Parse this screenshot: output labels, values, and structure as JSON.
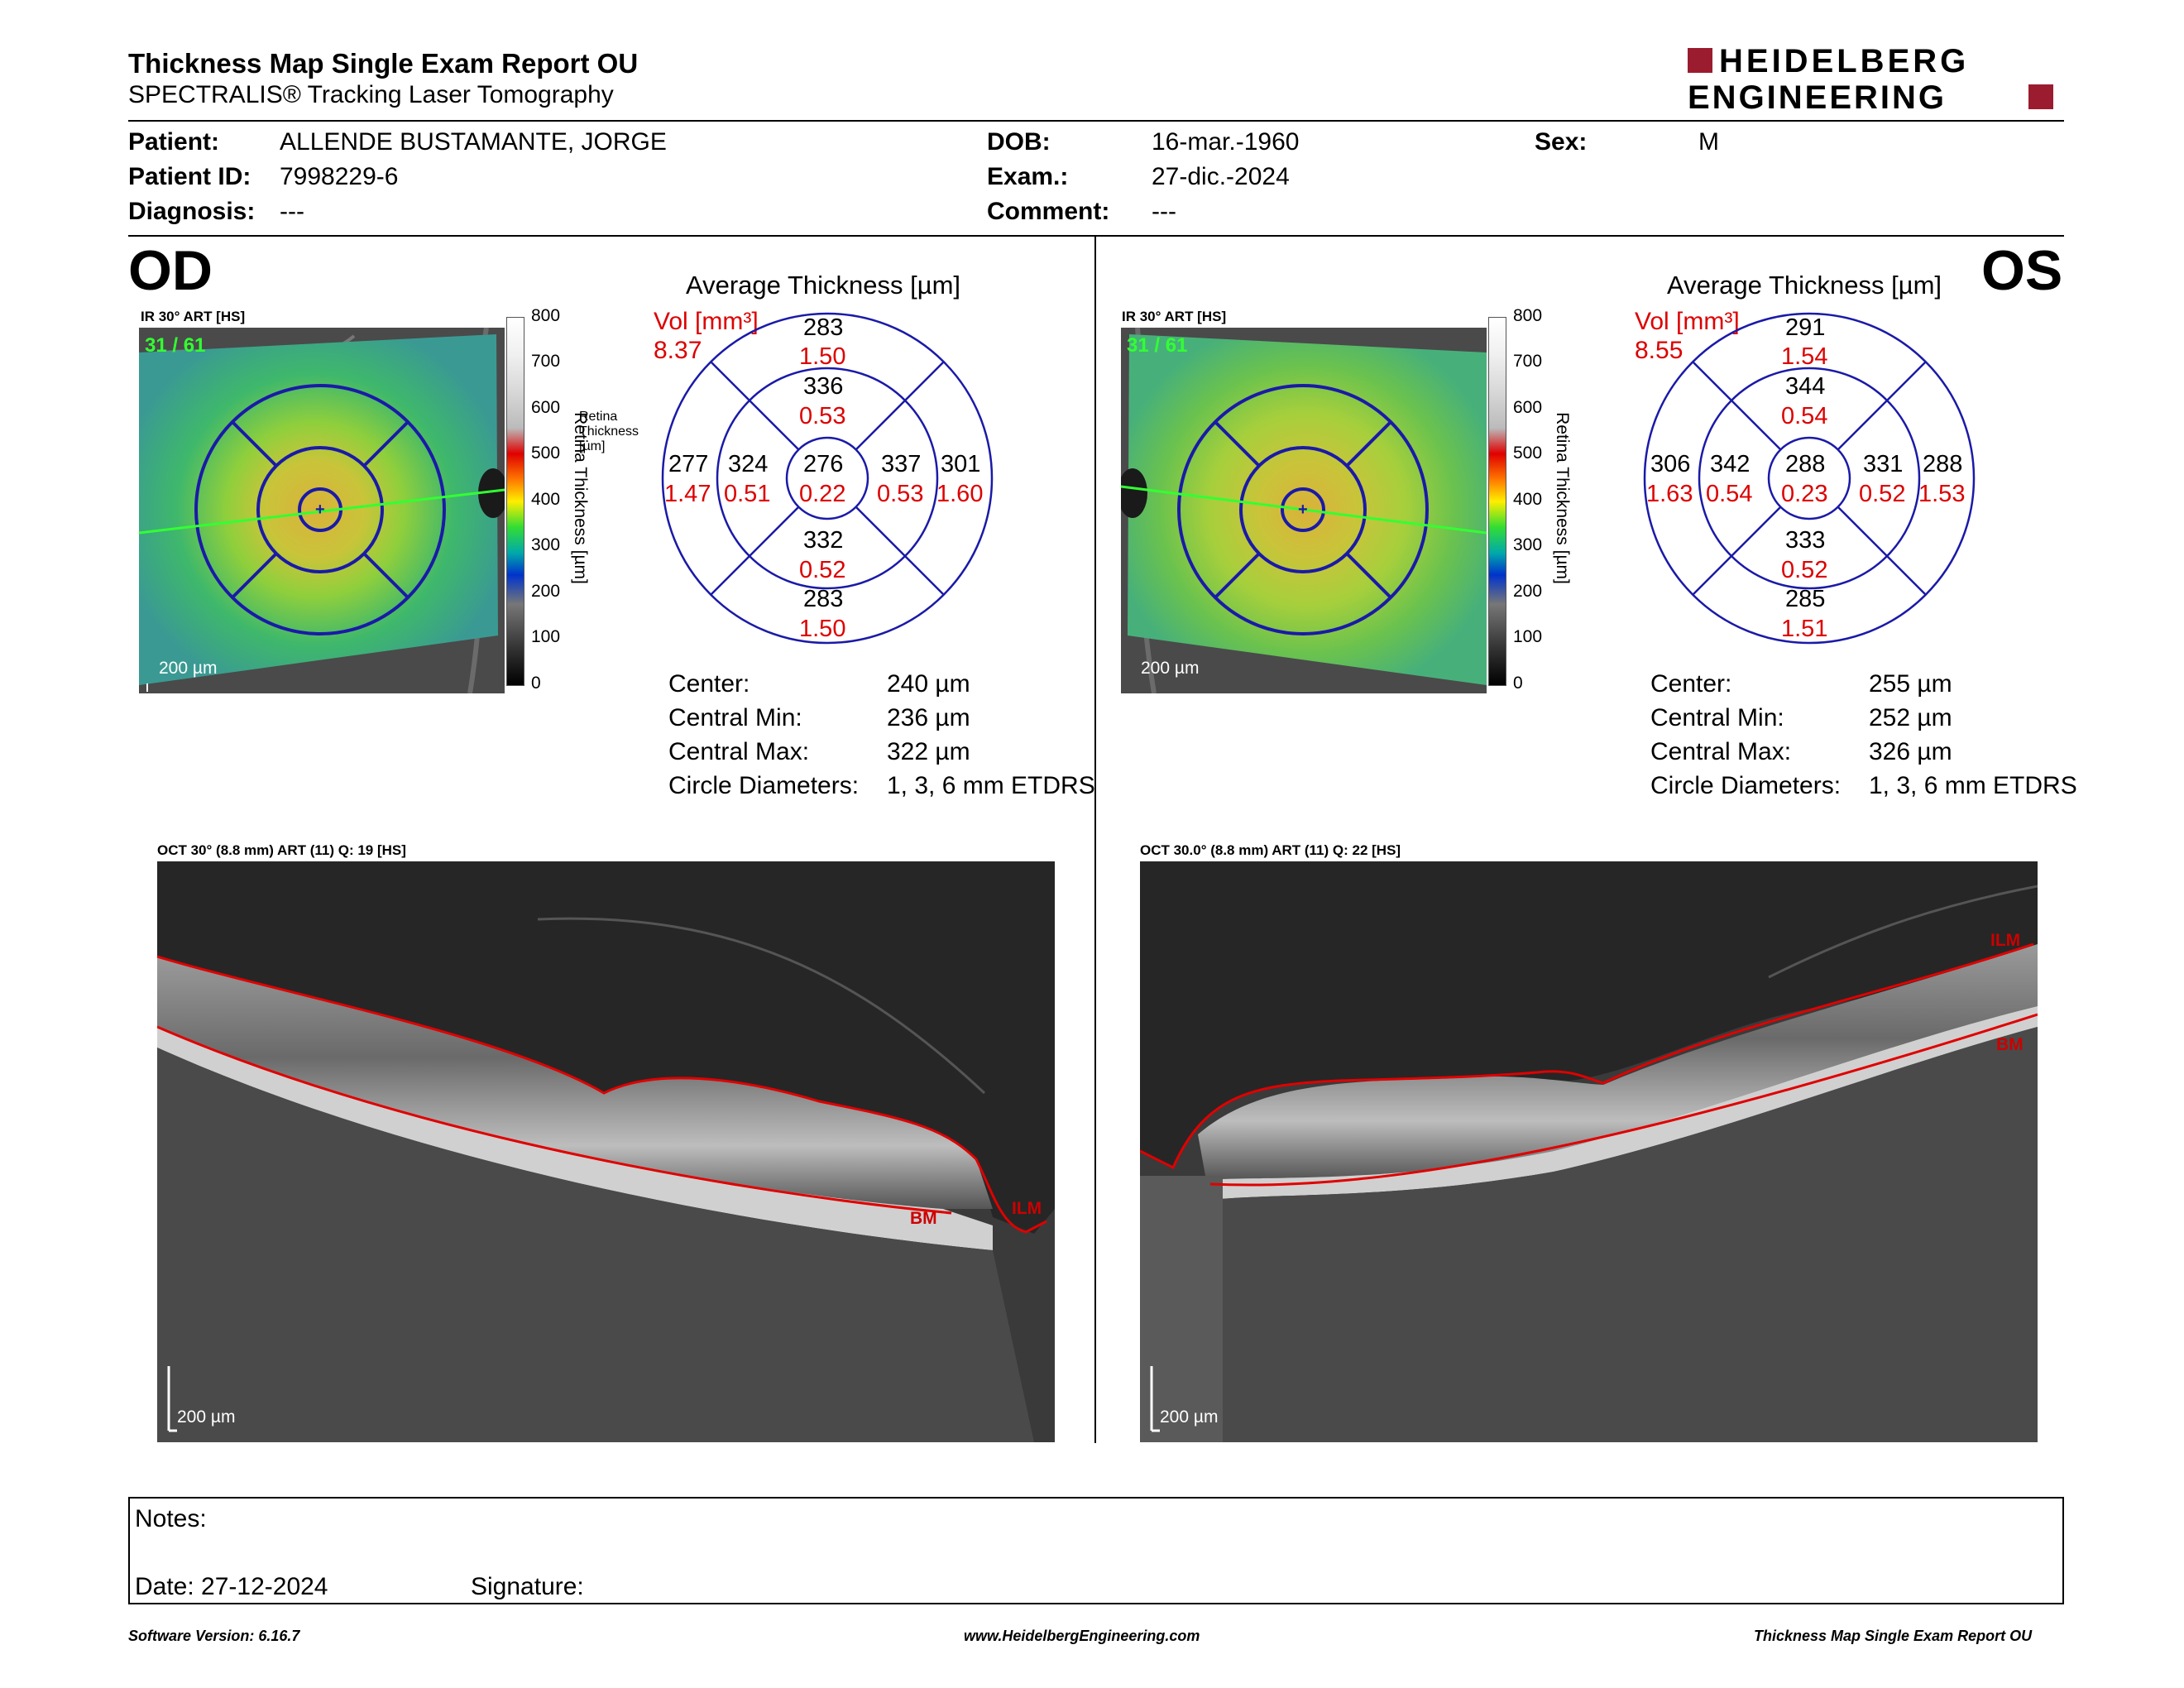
{
  "header": {
    "title": "Thickness Map Single Exam Report OU",
    "subtitle": "SPECTRALIS® Tracking Laser Tomography",
    "logo_line1": "HEIDELBERG",
    "logo_line2": "ENGINEERING"
  },
  "patient": {
    "patient_label": "Patient:",
    "patient_value": "ALLENDE BUSTAMANTE, JORGE",
    "id_label": "Patient ID:",
    "id_value": "7998229-6",
    "diagnosis_label": "Diagnosis:",
    "diagnosis_value": "---",
    "dob_label": "DOB:",
    "dob_value": "16-mar.-1960",
    "exam_label": "Exam.:",
    "exam_value": "27-dic.-2024",
    "comment_label": "Comment:",
    "comment_value": "---",
    "sex_label": "Sex:",
    "sex_value": "M"
  },
  "od": {
    "eye_label": "OD",
    "ir_label": "IR 30° ART [HS]",
    "frame_count": "31 / 61",
    "scale_label": "200 µm",
    "avg_title": "Average Thickness [µm]",
    "vol_label": "Vol [mm³]",
    "vol_value": "8.37",
    "etdrs": {
      "outer_sup": "283",
      "outer_sup_vol": "1.50",
      "inner_sup": "336",
      "inner_sup_vol": "0.53",
      "outer_temp": "277",
      "outer_temp_vol": "1.47",
      "inner_temp": "324",
      "inner_temp_vol": "0.51",
      "center": "276",
      "center_vol": "0.22",
      "inner_nas": "337",
      "inner_nas_vol": "0.53",
      "outer_nas": "301",
      "outer_nas_vol": "1.60",
      "inner_inf": "332",
      "inner_inf_vol": "0.52",
      "outer_inf": "283",
      "outer_inf_vol": "1.50"
    },
    "stats": {
      "center_label": "Center:",
      "center_value": "240 µm",
      "min_label": "Central Min:",
      "min_value": "236 µm",
      "max_label": "Central Max:",
      "max_value": "322 µm",
      "diam_label": "Circle Diameters:",
      "diam_value": "1, 3, 6 mm ETDRS"
    },
    "oct_label": "OCT 30° (8.8 mm) ART (11) Q: 19 [HS]",
    "oct_scale": "200 µm",
    "ilm": "ILM",
    "bm": "BM"
  },
  "os": {
    "eye_label": "OS",
    "ir_label": "IR 30° ART [HS]",
    "frame_count": "31 / 61",
    "scale_label": "200 µm",
    "avg_title": "Average Thickness [µm]",
    "vol_label": "Vol [mm³]",
    "vol_value": "8.55",
    "etdrs": {
      "outer_sup": "291",
      "outer_sup_vol": "1.54",
      "inner_sup": "344",
      "inner_sup_vol": "0.54",
      "outer_temp": "306",
      "outer_temp_vol": "1.63",
      "inner_temp": "342",
      "inner_temp_vol": "0.54",
      "center": "288",
      "center_vol": "0.23",
      "inner_nas": "331",
      "inner_nas_vol": "0.52",
      "outer_nas": "288",
      "outer_nas_vol": "1.53",
      "inner_inf": "333",
      "inner_inf_vol": "0.52",
      "outer_inf": "285",
      "outer_inf_vol": "1.51"
    },
    "stats": {
      "center_label": "Center:",
      "center_value": "255 µm",
      "min_label": "Central Min:",
      "min_value": "252 µm",
      "max_label": "Central Max:",
      "max_value": "326 µm",
      "diam_label": "Circle Diameters:",
      "diam_value": "1, 3, 6 mm ETDRS"
    },
    "oct_label": "OCT 30.0° (8.8 mm) ART (11) Q: 22 [HS]",
    "oct_scale": "200 µm",
    "ilm": "ILM",
    "bm": "BM"
  },
  "colorbar": {
    "ticks": [
      "800",
      "700",
      "600",
      "500",
      "400",
      "300",
      "200",
      "100",
      "0"
    ],
    "axis_label": "Retina Thickness [µm]"
  },
  "notes": {
    "notes_label": "Notes:",
    "date_label": "Date: 27-12-2024",
    "signature_label": "Signature:"
  },
  "footer": {
    "software": "Software Version: 6.16.7",
    "website": "www.HeidelbergEngineering.com",
    "report_name": "Thickness Map Single Exam Report OU"
  },
  "colors": {
    "brand": "#9b1c2e",
    "etdrs_grid": "#1a1aa8",
    "volume_text": "#dd0000",
    "segmentation": "#e00000",
    "frame_green": "#33ff33"
  }
}
